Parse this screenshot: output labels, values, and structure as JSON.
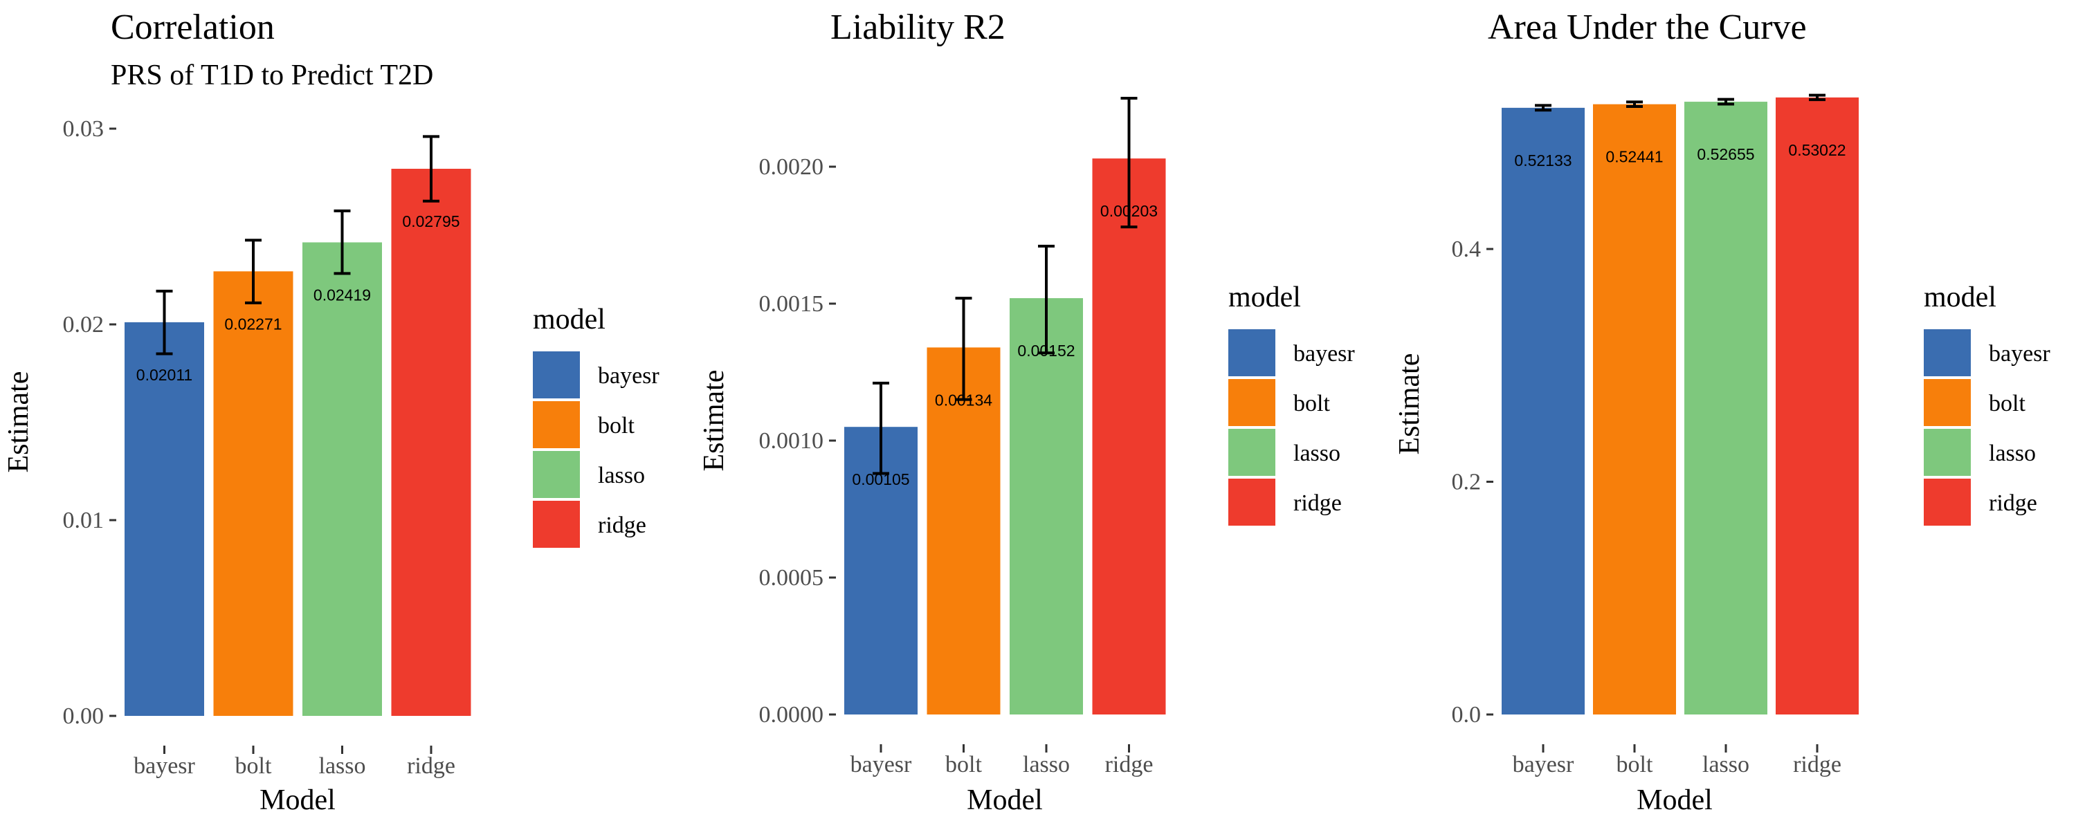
{
  "chart_data": [
    {
      "type": "bar",
      "title": "Correlation",
      "subtitle": "PRS of T1D to Predict T2D",
      "xlabel": "Model",
      "ylabel": "Estimate",
      "categories": [
        "bayesr",
        "bolt",
        "lasso",
        "ridge"
      ],
      "values": [
        0.02011,
        0.02271,
        0.02419,
        0.02795
      ],
      "value_labels": [
        "0.02011",
        "0.02271",
        "0.02419",
        "0.02795"
      ],
      "error_low": [
        0.0185,
        0.0211,
        0.0226,
        0.0263
      ],
      "error_high": [
        0.0217,
        0.0243,
        0.0258,
        0.0296
      ],
      "ylim": [
        0,
        0.03
      ],
      "yticks": [
        0,
        0.01,
        0.02,
        0.03
      ],
      "ytick_labels": [
        "0.00",
        "0.01",
        "0.02",
        "0.03"
      ],
      "legend": {
        "title": "model",
        "entries": [
          "bayesr",
          "bolt",
          "lasso",
          "ridge"
        ],
        "placement": "right"
      },
      "grid": false
    },
    {
      "type": "bar",
      "title": "Liability R2",
      "subtitle": "",
      "xlabel": "Model",
      "ylabel": "Estimate",
      "categories": [
        "bayesr",
        "bolt",
        "lasso",
        "ridge"
      ],
      "values": [
        0.00105,
        0.00134,
        0.00152,
        0.00203
      ],
      "value_labels": [
        "0.00105",
        "0.00134",
        "0.00152",
        "0.00203"
      ],
      "error_low": [
        0.00088,
        0.00115,
        0.00132,
        0.00178
      ],
      "error_high": [
        0.00121,
        0.00152,
        0.00171,
        0.00225
      ],
      "ylim": [
        0,
        0.002
      ],
      "yticks": [
        0,
        0.0005,
        0.001,
        0.0015,
        0.002
      ],
      "ytick_labels": [
        "0.0000",
        "0.0005",
        "0.0010",
        "0.0015",
        "0.0020"
      ],
      "legend": {
        "title": "model",
        "entries": [
          "bayesr",
          "bolt",
          "lasso",
          "ridge"
        ],
        "placement": "right"
      },
      "grid": false
    },
    {
      "type": "bar",
      "title": "Area Under the Curve",
      "subtitle": "",
      "xlabel": "Model",
      "ylabel": "Estimate",
      "categories": [
        "bayesr",
        "bolt",
        "lasso",
        "ridge"
      ],
      "values": [
        0.52133,
        0.52441,
        0.52655,
        0.53022
      ],
      "value_labels": [
        "0.52133",
        "0.52441",
        "0.52655",
        "0.53022"
      ],
      "error_low": [
        0.5193,
        0.5224,
        0.5245,
        0.5283
      ],
      "error_high": [
        0.5234,
        0.5264,
        0.5286,
        0.5322
      ],
      "ylim": [
        0,
        0.4
      ],
      "yticks": [
        0,
        0.2,
        0.4
      ],
      "ytick_labels": [
        "0.0",
        "0.2",
        "0.4"
      ],
      "legend": {
        "title": "model",
        "entries": [
          "bayesr",
          "bolt",
          "lasso",
          "ridge"
        ],
        "placement": "right"
      },
      "grid": false
    }
  ],
  "colors": {
    "bayesr": "#3a6db0",
    "bolt": "#f77f0b",
    "lasso": "#7ec87d",
    "ridge": "#ee3b2d",
    "text": "#000000",
    "tick_text": "#4d4d4d",
    "axis_tick": "#333333",
    "errorbar": "#000000"
  }
}
